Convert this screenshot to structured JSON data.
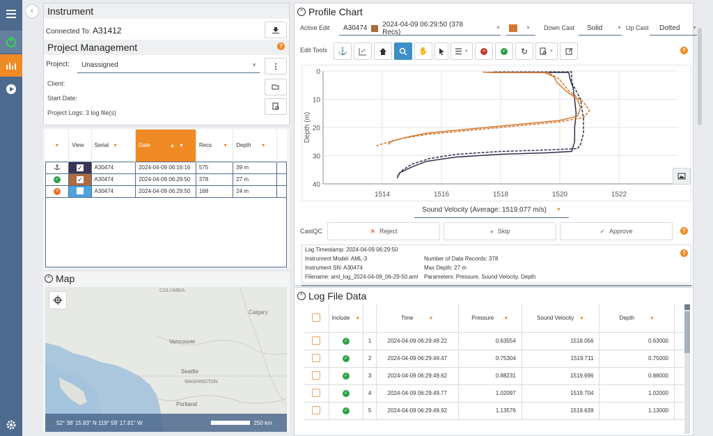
{
  "instrument": {
    "title": "Instrument",
    "connected_label": "Connected To:",
    "connected_value": "A31412"
  },
  "project": {
    "title": "Project Management",
    "project_label": "Project:",
    "project_value": "Unassigned",
    "client_label": "Client:",
    "start_date_label": "Start Date:",
    "logs_text": "Project Logs: 3 log file(s)"
  },
  "casts_table": {
    "headers": {
      "view": "View",
      "serial": "Serial",
      "date": "Date",
      "recs": "Recs",
      "depth": "Depth"
    },
    "rows": [
      {
        "status_icon": "anchor-icon",
        "serial": "A30474",
        "date": "2024-04-09 06:16:16",
        "recs": "575",
        "depth": "39 m",
        "color": "#3b3452"
      },
      {
        "status_icon": "check-circle-icon",
        "serial": "A30474",
        "date": "2024-04-09 06:29:50",
        "recs": "378",
        "depth": "27 m",
        "color": "#b06a3b"
      },
      {
        "status_icon": "reject-circle-icon",
        "serial": "A30474",
        "date": "2024-04-09 06:29:50",
        "recs": "168",
        "depth": "24 m",
        "color": "#4da3e0"
      }
    ]
  },
  "map": {
    "title": "Map",
    "labels": {
      "columbia": "COLUMBIA",
      "calgary": "Calgary",
      "vancouver": "Vancouver",
      "seattle": "Seattle",
      "washington": "WASHINGTON",
      "portland": "Portland"
    },
    "coords": "52° 38' 15.83\" N 119° 59' 17.81\" W",
    "scale_label": "250 km"
  },
  "profile": {
    "title": "Profile Chart",
    "active_edit_label": "Active Edit",
    "active_edit_value": "A30474",
    "active_edit_cast": "2024-04-09 06:29:50 (378 Recs)",
    "down_cast_label": "Down Cast",
    "down_cast_value": "Solid",
    "up_cast_label": "Up Cast",
    "up_cast_value": "Dotted",
    "edit_tools_label": "Edit Tools",
    "quantity_select": "Sound Velocity (Average: 1519.077 m/s)",
    "castqc_label": "CastQC",
    "reject_label": "Reject",
    "skip_label": "Skip",
    "approve_label": "Approve"
  },
  "chart_data": {
    "type": "line",
    "ylabel": "Depth (m)",
    "xlim": [
      1512,
      1524
    ],
    "ylim": [
      40,
      0
    ],
    "x_ticks": [
      "1514",
      "1516",
      "1518",
      "1520",
      "1522"
    ],
    "y_ticks": [
      "0",
      "10",
      "20",
      "30",
      "40"
    ],
    "grid": true,
    "series": [
      {
        "color": "#2c2f4a",
        "style": "solid",
        "points": [
          [
            1517.7,
            0.5
          ],
          [
            1520.3,
            0.5
          ],
          [
            1520.35,
            3
          ],
          [
            1520.45,
            6
          ],
          [
            1520.5,
            10
          ],
          [
            1520.55,
            15
          ],
          [
            1520.5,
            20
          ],
          [
            1520.5,
            25
          ],
          [
            1520.4,
            28.5
          ],
          [
            1519.5,
            29
          ],
          [
            1518,
            29.5
          ],
          [
            1516.5,
            30.5
          ],
          [
            1515.5,
            32
          ],
          [
            1515,
            34
          ],
          [
            1514.6,
            36
          ],
          [
            1514.5,
            38
          ]
        ]
      },
      {
        "color": "#2c2f4a",
        "style": "dashed",
        "points": [
          [
            1517.8,
            0.3
          ],
          [
            1520.4,
            0.3
          ],
          [
            1520.4,
            4
          ],
          [
            1520.7,
            10
          ],
          [
            1520.8,
            17
          ],
          [
            1520.8,
            22
          ],
          [
            1520.7,
            26
          ],
          [
            1520.6,
            27.5
          ],
          [
            1519.5,
            28
          ],
          [
            1518,
            28.5
          ],
          [
            1516.5,
            29.5
          ],
          [
            1515.6,
            31
          ],
          [
            1515,
            33
          ],
          [
            1514.7,
            35
          ],
          [
            1514.5,
            37
          ]
        ]
      },
      {
        "color": "#d4762f",
        "style": "solid",
        "points": [
          [
            1517.5,
            0.5
          ],
          [
            1519.5,
            0.6
          ],
          [
            1519.8,
            2
          ],
          [
            1519.9,
            4
          ],
          [
            1520.2,
            7
          ],
          [
            1520.6,
            10
          ],
          [
            1520.7,
            13
          ],
          [
            1520.6,
            16
          ],
          [
            1520,
            17.5
          ],
          [
            1518.5,
            19
          ],
          [
            1517,
            20.5
          ],
          [
            1515.5,
            22
          ],
          [
            1514.8,
            23.5
          ],
          [
            1514.3,
            25
          ],
          [
            1514.2,
            26
          ]
        ]
      },
      {
        "color": "#d4762f",
        "style": "dashed",
        "points": [
          [
            1517.4,
            0.4
          ],
          [
            1519.6,
            0.5
          ],
          [
            1520,
            3
          ],
          [
            1520.3,
            7
          ],
          [
            1520.8,
            11
          ],
          [
            1521,
            14
          ],
          [
            1520.8,
            16.5
          ],
          [
            1520,
            18
          ],
          [
            1518.5,
            19.5
          ],
          [
            1517,
            21
          ],
          [
            1515.5,
            22.5
          ],
          [
            1514.6,
            24
          ],
          [
            1514.1,
            25.5
          ],
          [
            1513.8,
            26.5
          ]
        ]
      }
    ]
  },
  "log_meta": {
    "timestamp": "Log Timestamp: 2024-04-09 06:29:50",
    "model": "Instrument Model: AML-3",
    "sn": "Instrument SN: A30474",
    "filename": "Filename: aml_log_2024-04-09_06-29-50.aml",
    "num_records": "Number of Data Records: 378",
    "max_depth": "Max Depth: 27 m",
    "parameters": "Parameters: Pressure, Sound Velocity, Depth"
  },
  "log_data": {
    "title": "Log File Data",
    "headers": {
      "include": "Include",
      "time": "Time",
      "pressure": "Pressure",
      "sound_velocity": "Sound Velocity",
      "depth": "Depth"
    },
    "rows": [
      {
        "n": "1",
        "time": "2024-04-09 06:29:49.22",
        "pressure": "0.63554",
        "sv": "1518.056",
        "depth": "0.63000"
      },
      {
        "n": "2",
        "time": "2024-04-09 06:29:49.47",
        "pressure": "0.75304",
        "sv": "1519.711",
        "depth": "0.75000"
      },
      {
        "n": "3",
        "time": "2024-04-09 06:29:49.62",
        "pressure": "0.88231",
        "sv": "1519.696",
        "depth": "0.88000"
      },
      {
        "n": "4",
        "time": "2024-04-09 06:29:49.77",
        "pressure": "1.02097",
        "sv": "1519.704",
        "depth": "1.02000"
      },
      {
        "n": "5",
        "time": "2024-04-09 06:29:49.92",
        "pressure": "1.13576",
        "sv": "1519.639",
        "depth": "1.13000"
      }
    ]
  }
}
